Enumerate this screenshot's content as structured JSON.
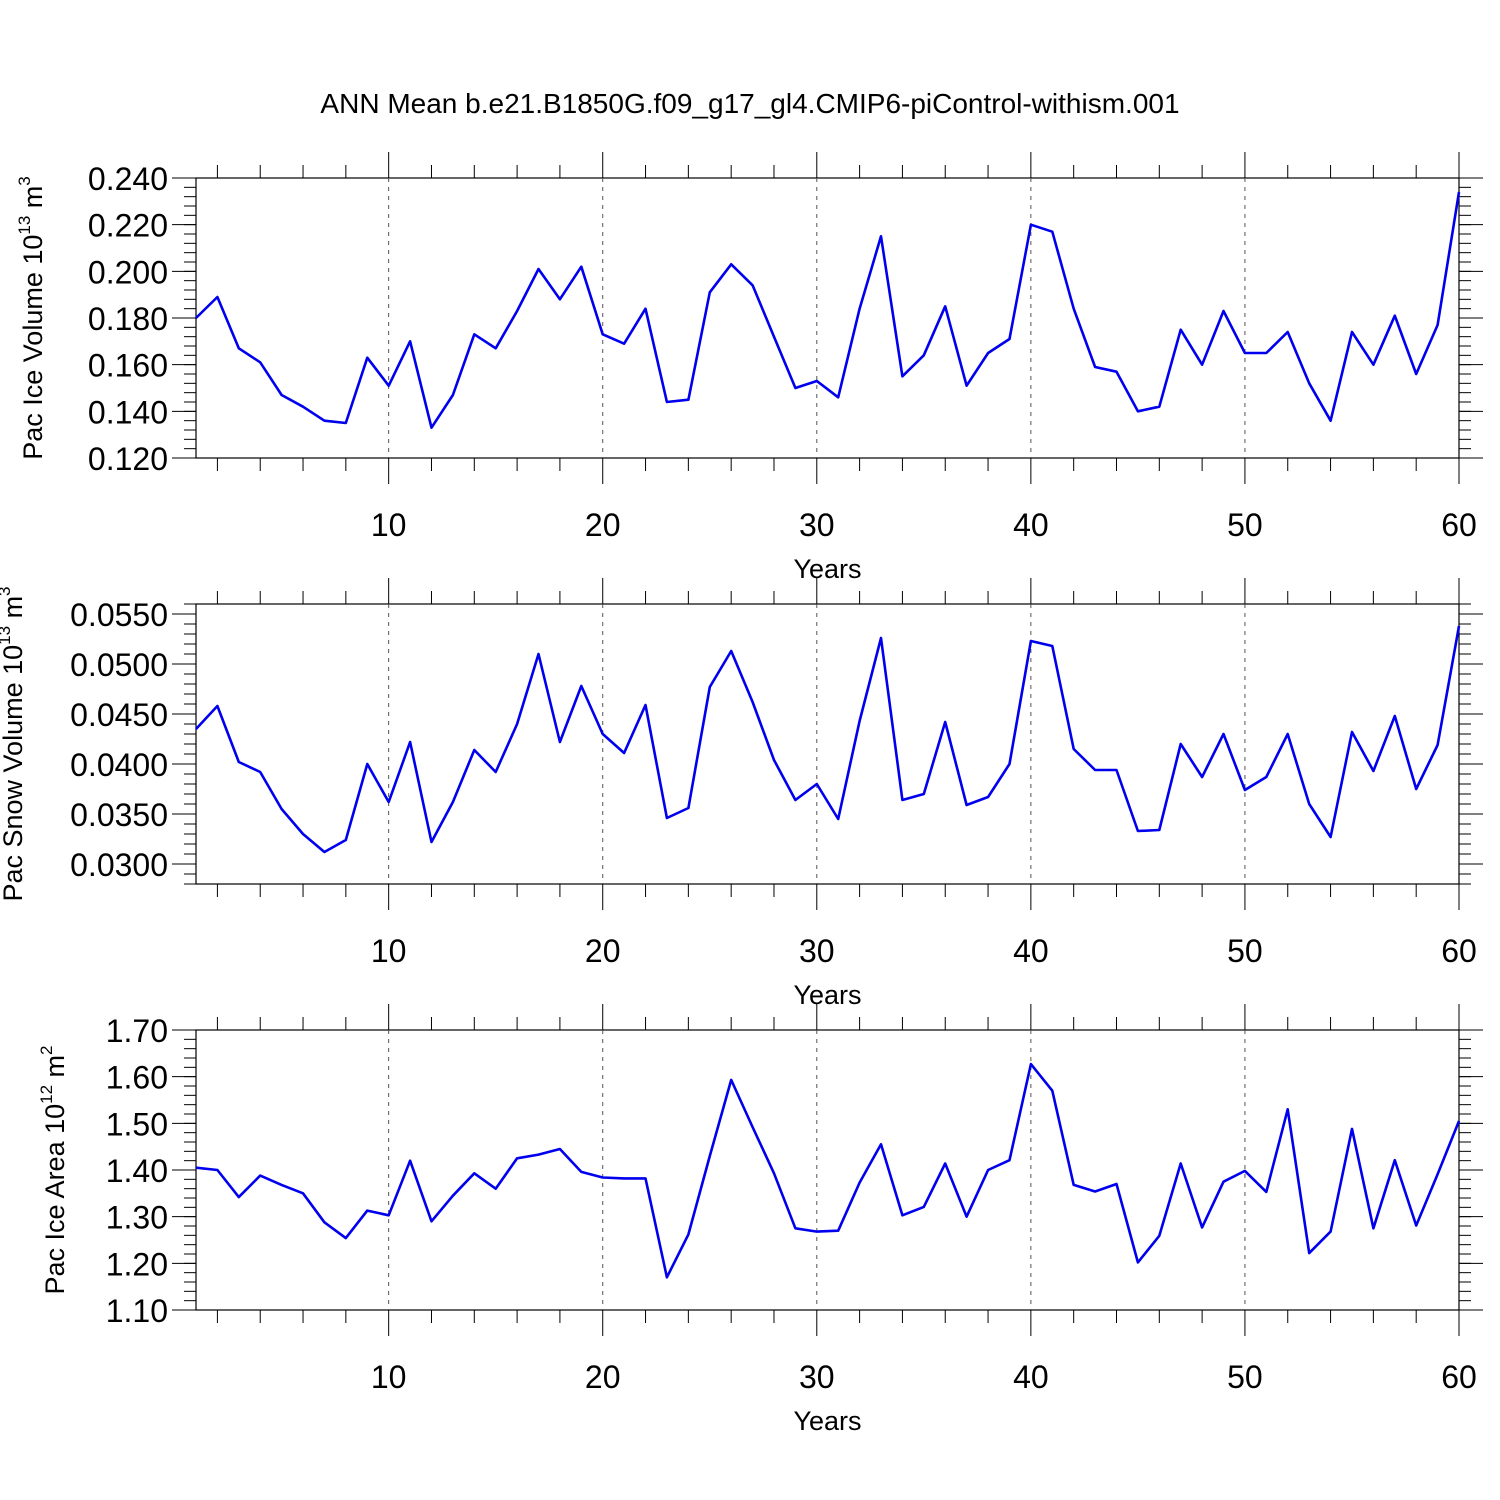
{
  "figure": {
    "title": "ANN Mean b.e21.B1850G.f09_g17_gl4.CMIP6-piControl-withism.001"
  },
  "chart_data": [
    {
      "type": "line",
      "ylabel_text": "Pac Ice Volume 10",
      "ylabel_sup": "13",
      "ylabel_unit": " m",
      "ylabel_unit_sup": "3",
      "xlabel": "Years",
      "xlim": [
        1,
        60
      ],
      "ylim": [
        0.12,
        0.24
      ],
      "yticks": [
        "0.120",
        "0.140",
        "0.160",
        "0.180",
        "0.200",
        "0.220",
        "0.240"
      ],
      "ytick_values": [
        0.12,
        0.14,
        0.16,
        0.18,
        0.2,
        0.22,
        0.24
      ],
      "xticks": [
        "10",
        "20",
        "30",
        "40",
        "50",
        "60"
      ],
      "xtick_values": [
        10,
        20,
        30,
        40,
        50,
        60
      ],
      "grid": "vertical dashed at major x ticks",
      "color": "#0000ee",
      "x": [
        1,
        2,
        3,
        4,
        5,
        6,
        7,
        8,
        9,
        10,
        11,
        12,
        13,
        14,
        15,
        16,
        17,
        18,
        19,
        20,
        21,
        22,
        23,
        24,
        25,
        26,
        27,
        28,
        29,
        30,
        31,
        32,
        33,
        34,
        35,
        36,
        37,
        38,
        39,
        40,
        41,
        42,
        43,
        44,
        45,
        46,
        47,
        48,
        49,
        50,
        51,
        52,
        53,
        54,
        55,
        56,
        57,
        58,
        59,
        60
      ],
      "values": [
        0.18,
        0.189,
        0.167,
        0.161,
        0.147,
        0.142,
        0.136,
        0.135,
        0.163,
        0.151,
        0.17,
        0.133,
        0.147,
        0.173,
        0.167,
        0.183,
        0.201,
        0.188,
        0.202,
        0.173,
        0.169,
        0.184,
        0.144,
        0.145,
        0.191,
        0.203,
        0.194,
        0.172,
        0.15,
        0.153,
        0.146,
        0.184,
        0.215,
        0.155,
        0.164,
        0.185,
        0.151,
        0.165,
        0.171,
        0.22,
        0.217,
        0.184,
        0.159,
        0.157,
        0.14,
        0.142,
        0.175,
        0.16,
        0.183,
        0.165,
        0.165,
        0.174,
        0.152,
        0.136,
        0.174,
        0.16,
        0.181,
        0.156,
        0.177,
        0.234
      ]
    },
    {
      "type": "line",
      "ylabel_text": "Pac Snow Volume 10",
      "ylabel_sup": "13",
      "ylabel_unit": " m",
      "ylabel_unit_sup": "3",
      "xlabel": "Years",
      "xlim": [
        1,
        60
      ],
      "ylim": [
        0.028,
        0.056
      ],
      "yticks": [
        "0.0300",
        "0.0350",
        "0.0400",
        "0.0450",
        "0.0500",
        "0.0550"
      ],
      "ytick_values": [
        0.03,
        0.035,
        0.04,
        0.045,
        0.05,
        0.055
      ],
      "xticks": [
        "10",
        "20",
        "30",
        "40",
        "50",
        "60"
      ],
      "xtick_values": [
        10,
        20,
        30,
        40,
        50,
        60
      ],
      "grid": "vertical dashed at major x ticks",
      "color": "#0000ee",
      "x": [
        1,
        2,
        3,
        4,
        5,
        6,
        7,
        8,
        9,
        10,
        11,
        12,
        13,
        14,
        15,
        16,
        17,
        18,
        19,
        20,
        21,
        22,
        23,
        24,
        25,
        26,
        27,
        28,
        29,
        30,
        31,
        32,
        33,
        34,
        35,
        36,
        37,
        38,
        39,
        40,
        41,
        42,
        43,
        44,
        45,
        46,
        47,
        48,
        49,
        50,
        51,
        52,
        53,
        54,
        55,
        56,
        57,
        58,
        59,
        60
      ],
      "values": [
        0.0435,
        0.0458,
        0.0402,
        0.0392,
        0.0355,
        0.033,
        0.0312,
        0.0324,
        0.04,
        0.0362,
        0.0422,
        0.0322,
        0.0362,
        0.0414,
        0.0392,
        0.044,
        0.051,
        0.0422,
        0.0478,
        0.043,
        0.0411,
        0.0459,
        0.0346,
        0.0356,
        0.0477,
        0.0513,
        0.0462,
        0.0404,
        0.0364,
        0.038,
        0.0345,
        0.0443,
        0.0526,
        0.0364,
        0.037,
        0.0442,
        0.0359,
        0.0367,
        0.04,
        0.0523,
        0.0518,
        0.0415,
        0.0394,
        0.0394,
        0.0333,
        0.0334,
        0.042,
        0.0387,
        0.043,
        0.0374,
        0.0387,
        0.043,
        0.036,
        0.0327,
        0.0432,
        0.0393,
        0.0448,
        0.0375,
        0.0419,
        0.0538
      ]
    },
    {
      "type": "line",
      "ylabel_text": "Pac Ice Area 10",
      "ylabel_sup": "12",
      "ylabel_unit": " m",
      "ylabel_unit_sup": "2",
      "xlabel": "Years",
      "xlim": [
        1,
        60
      ],
      "ylim": [
        1.1,
        1.7
      ],
      "yticks": [
        "1.10",
        "1.20",
        "1.30",
        "1.40",
        "1.50",
        "1.60",
        "1.70"
      ],
      "ytick_values": [
        1.1,
        1.2,
        1.3,
        1.4,
        1.5,
        1.6,
        1.7
      ],
      "xticks": [
        "10",
        "20",
        "30",
        "40",
        "50",
        "60"
      ],
      "xtick_values": [
        10,
        20,
        30,
        40,
        50,
        60
      ],
      "grid": "vertical dashed at major x ticks",
      "color": "#0000ee",
      "x": [
        1,
        2,
        3,
        4,
        5,
        6,
        7,
        8,
        9,
        10,
        11,
        12,
        13,
        14,
        15,
        16,
        17,
        18,
        19,
        20,
        21,
        22,
        23,
        24,
        25,
        26,
        27,
        28,
        29,
        30,
        31,
        32,
        33,
        34,
        35,
        36,
        37,
        38,
        39,
        40,
        41,
        42,
        43,
        44,
        45,
        46,
        47,
        48,
        49,
        50,
        51,
        52,
        53,
        54,
        55,
        56,
        57,
        58,
        59,
        60
      ],
      "values": [
        1.405,
        1.4,
        1.342,
        1.388,
        1.368,
        1.35,
        1.288,
        1.254,
        1.313,
        1.303,
        1.42,
        1.29,
        1.345,
        1.393,
        1.36,
        1.425,
        1.433,
        1.445,
        1.396,
        1.384,
        1.382,
        1.382,
        1.17,
        1.262,
        1.43,
        1.593,
        1.492,
        1.393,
        1.275,
        1.268,
        1.27,
        1.373,
        1.455,
        1.303,
        1.321,
        1.414,
        1.3,
        1.4,
        1.421,
        1.627,
        1.57,
        1.368,
        1.354,
        1.37,
        1.202,
        1.259,
        1.414,
        1.277,
        1.375,
        1.398,
        1.353,
        1.53,
        1.222,
        1.268,
        1.488,
        1.275,
        1.421,
        1.281,
        1.391,
        1.505
      ]
    }
  ]
}
